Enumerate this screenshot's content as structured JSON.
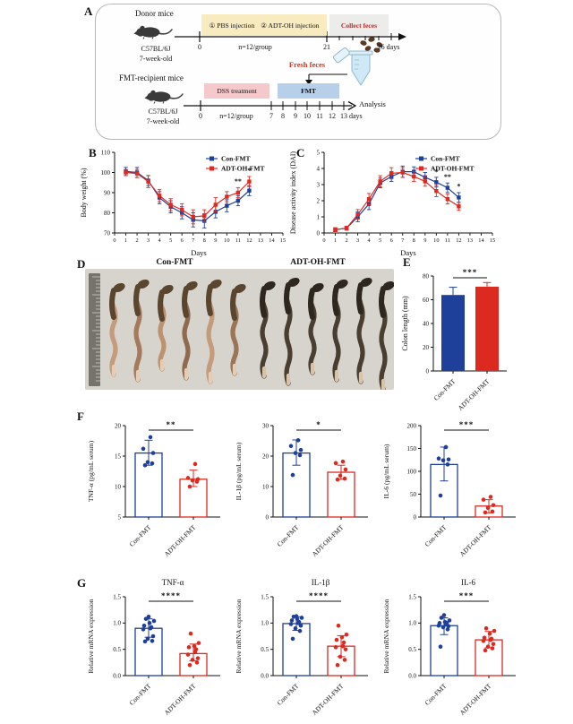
{
  "panels": {
    "a": "A",
    "b": "B",
    "c": "C",
    "d": "D",
    "e": "E",
    "f": "F",
    "g": "G"
  },
  "colors": {
    "blue": "#1F409A",
    "red": "#DD2A20",
    "axis": "#111111",
    "yellow_box": "#F8EBC0",
    "grey_box": "#ECECEA",
    "pink_box": "#F5C8CB",
    "blue_box": "#B7CFE9",
    "red_text": "#C0392B"
  },
  "panel_a": {
    "donor": {
      "group_label": "Donor mice",
      "strain": "C57BL/6J",
      "age": "7-week-old",
      "inj1": "① PBS injection",
      "inj2": "② ADT-OH injection",
      "collect_box": "Collect feces",
      "tick_start": "0",
      "n_label": "n=12/group",
      "tick_21": "21",
      "tick_end": "26 days"
    },
    "recipient": {
      "group_label": "FMT-recipient mice",
      "strain": "C57BL/6J",
      "age": "7-week-old",
      "dss_box": "DSS treatment",
      "fmt_box": "FMT",
      "fresh_feces": "Fresh feces",
      "analysis": "Analysis",
      "tick_start": "0",
      "n_label": "n=12/group",
      "ticks": [
        "7",
        "8",
        "9",
        "10",
        "11",
        "12",
        "13"
      ],
      "days_suffix": "days"
    }
  },
  "panel_d": {
    "left_group": "Con-FMT",
    "right_group": "ADT-OH-FMT"
  },
  "chart_data": [
    {
      "id": "B",
      "type": "line",
      "xlabel": "Days",
      "ylabel": "Body weight (%)",
      "xlim": [
        0,
        15
      ],
      "ylim": [
        70,
        110
      ],
      "yticks": [
        70,
        80,
        90,
        100,
        110
      ],
      "x": [
        1,
        2,
        3,
        4,
        5,
        6,
        7,
        8,
        9,
        10,
        11,
        12
      ],
      "legend_position": "top-right",
      "grid": false,
      "series": [
        {
          "name": "Con-FMT",
          "color": "blue",
          "values": [
            100.5,
            100,
            96,
            87.5,
            83,
            80,
            76.5,
            76,
            80.5,
            83.5,
            86,
            91
          ],
          "errors": [
            2,
            2.5,
            2.5,
            3,
            3,
            3,
            3.5,
            3.5,
            3,
            3,
            2.5,
            2.5
          ]
        },
        {
          "name": "ADT-OH-FMT",
          "color": "red",
          "values": [
            100,
            99.5,
            95.5,
            88.5,
            84,
            81.5,
            78,
            78.5,
            84,
            88,
            90,
            95.5
          ],
          "errors": [
            1.5,
            2,
            3,
            3,
            3,
            3,
            3.5,
            3,
            3.5,
            2.5,
            2.5,
            2.5
          ]
        }
      ],
      "annotations": [
        {
          "x": 11,
          "y": 94.5,
          "text": "**"
        },
        {
          "x": 12,
          "y": 99.8,
          "text": "*"
        }
      ]
    },
    {
      "id": "C",
      "type": "line",
      "xlabel": "Days",
      "ylabel": "Disease activity index (DAI)",
      "xlim": [
        0,
        15
      ],
      "ylim": [
        0,
        5
      ],
      "yticks": [
        0,
        1,
        2,
        3,
        4,
        5
      ],
      "x": [
        1,
        2,
        3,
        4,
        5,
        6,
        7,
        8,
        9,
        10,
        11,
        12
      ],
      "legend_position": "top-right",
      "grid": false,
      "series": [
        {
          "name": "Con-FMT",
          "color": "blue",
          "values": [
            0.2,
            0.3,
            1.0,
            1.8,
            3.1,
            3.5,
            3.8,
            3.8,
            3.45,
            3.15,
            2.8,
            2.2
          ],
          "errors": [
            0.12,
            0.12,
            0.3,
            0.35,
            0.3,
            0.3,
            0.35,
            0.3,
            0.3,
            0.3,
            0.3,
            0.3
          ]
        },
        {
          "name": "ADT-OH-FMT",
          "color": "red",
          "values": [
            0.2,
            0.3,
            1.15,
            2.1,
            3.2,
            3.7,
            3.75,
            3.5,
            3.2,
            2.6,
            2.1,
            1.65
          ],
          "errors": [
            0.12,
            0.12,
            0.3,
            0.35,
            0.35,
            0.35,
            0.3,
            0.3,
            0.3,
            0.35,
            0.3,
            0.25
          ]
        }
      ],
      "annotations": [
        {
          "x": 10,
          "y": 3.65,
          "text": "*"
        },
        {
          "x": 11,
          "y": 3.32,
          "text": "**"
        },
        {
          "x": 12,
          "y": 2.75,
          "text": "*"
        }
      ]
    },
    {
      "id": "E",
      "type": "bar",
      "ylabel": "Colon length (mm)",
      "ylim": [
        0,
        80
      ],
      "yticks": [
        0,
        20,
        40,
        60,
        80
      ],
      "categories": [
        "Con-FMT",
        "ADT-OH-FMT"
      ],
      "bars": [
        {
          "color": "blue",
          "value": 64,
          "err": 6.5
        },
        {
          "color": "red",
          "value": 71,
          "err": 3.5
        }
      ],
      "sig": "***"
    },
    {
      "id": "F1",
      "type": "bar-scatter",
      "ylabel": "TNF-α (pg/mL serum)",
      "ylim": [
        5,
        20
      ],
      "yticks": [
        5,
        10,
        15,
        20
      ],
      "categories": [
        "Con-FMT",
        "ADT-OH-FMT"
      ],
      "bars": [
        {
          "color": "blue",
          "value": 15.5,
          "err_low": 13.5,
          "err_high": 17.6,
          "points": [
            13.5,
            13.8,
            14.0,
            15.5,
            16.2,
            18.1
          ]
        },
        {
          "color": "red",
          "value": 11.2,
          "err_low": 10.0,
          "err_high": 12.7,
          "points": [
            10.0,
            10.8,
            11.0,
            11.2,
            11.4,
            13.7
          ]
        }
      ],
      "sig": "**"
    },
    {
      "id": "F2",
      "type": "bar-scatter",
      "ylabel": "IL-1β (pg/mL serum)",
      "ylim": [
        0,
        30
      ],
      "yticks": [
        0,
        10,
        20,
        30
      ],
      "categories": [
        "Con-FMT",
        "ADT-OH-FMT"
      ],
      "bars": [
        {
          "color": "blue",
          "value": 21,
          "err_low": 17,
          "err_high": 25.3,
          "points": [
            13.8,
            20.3,
            21.0,
            22.0,
            23.3,
            25.2
          ]
        },
        {
          "color": "red",
          "value": 14.7,
          "err_low": 12.4,
          "err_high": 17.0,
          "points": [
            12.3,
            12.6,
            13.6,
            15.6,
            17.7,
            18.2
          ]
        }
      ],
      "sig": "*"
    },
    {
      "id": "F3",
      "type": "bar-scatter",
      "ylabel": "IL-6 (pg/mL serum)",
      "ylim": [
        0,
        200
      ],
      "yticks": [
        0,
        50,
        100,
        150,
        200
      ],
      "categories": [
        "Con-FMT",
        "ADT-OH-FMT"
      ],
      "bars": [
        {
          "color": "blue",
          "value": 115,
          "err_low": 79,
          "err_high": 153,
          "points": [
            47,
            115,
            124,
            126,
            128,
            153
          ]
        },
        {
          "color": "red",
          "value": 24,
          "err_low": 9,
          "err_high": 38,
          "points": [
            10,
            12,
            20,
            26,
            38,
            44
          ]
        }
      ],
      "sig": "***"
    },
    {
      "id": "G1",
      "type": "bar-scatter",
      "title": "TNF-α",
      "ylabel": "Relative mRNA expression",
      "ylim": [
        0,
        1.5
      ],
      "yticks": [
        0,
        0.5,
        1,
        1.5
      ],
      "ytick_labels": [
        "0.0",
        "0.5",
        "1.0",
        "1.5"
      ],
      "categories": [
        "Con-FMT",
        "ADT-OH-FMT"
      ],
      "bars": [
        {
          "color": "blue",
          "value": 0.9,
          "err_low": 0.73,
          "err_high": 1.08,
          "points": [
            0.65,
            0.66,
            0.7,
            0.75,
            0.88,
            0.9,
            0.92,
            0.95,
            1.0,
            1.04,
            1.08,
            1.12
          ]
        },
        {
          "color": "red",
          "value": 0.42,
          "err_low": 0.28,
          "err_high": 0.6,
          "points": [
            0.2,
            0.25,
            0.3,
            0.33,
            0.4,
            0.45,
            0.5,
            0.54,
            0.56,
            0.62,
            0.8
          ]
        }
      ],
      "sig": "****"
    },
    {
      "id": "G2",
      "type": "bar-scatter",
      "title": "IL-1β",
      "ylabel": "Relative mRNA expression",
      "ylim": [
        0,
        1.5
      ],
      "yticks": [
        0,
        0.5,
        1,
        1.5
      ],
      "ytick_labels": [
        "0.0",
        "0.5",
        "1.0",
        "1.5"
      ],
      "categories": [
        "Con-FMT",
        "ADT-OH-FMT"
      ],
      "bars": [
        {
          "color": "blue",
          "value": 0.99,
          "err_low": 0.86,
          "err_high": 1.12,
          "points": [
            0.7,
            0.85,
            0.9,
            0.95,
            0.98,
            1.0,
            1.02,
            1.05,
            1.08,
            1.1,
            1.12,
            1.13
          ]
        },
        {
          "color": "red",
          "value": 0.56,
          "err_low": 0.36,
          "err_high": 0.76,
          "points": [
            0.2,
            0.3,
            0.36,
            0.5,
            0.54,
            0.56,
            0.63,
            0.68,
            0.73,
            0.78,
            0.95
          ]
        }
      ],
      "sig": "****"
    },
    {
      "id": "G3",
      "type": "bar-scatter",
      "title": "IL-6",
      "ylabel": "Relative mRNA expression",
      "ylim": [
        0,
        1.5
      ],
      "yticks": [
        0,
        0.5,
        1,
        1.5
      ],
      "ytick_labels": [
        "0.0",
        "0.5",
        "1.0",
        "1.5"
      ],
      "categories": [
        "Con-FMT",
        "ADT-OH-FMT"
      ],
      "bars": [
        {
          "color": "blue",
          "value": 0.95,
          "err_low": 0.78,
          "err_high": 1.1,
          "points": [
            0.55,
            0.88,
            0.92,
            0.94,
            0.95,
            0.97,
            1.0,
            1.0,
            1.02,
            1.05,
            1.1,
            1.15
          ]
        },
        {
          "color": "red",
          "value": 0.68,
          "err_low": 0.53,
          "err_high": 0.84,
          "points": [
            0.48,
            0.52,
            0.55,
            0.6,
            0.66,
            0.68,
            0.7,
            0.72,
            0.8,
            0.85,
            0.9
          ]
        }
      ],
      "sig": "***"
    }
  ]
}
